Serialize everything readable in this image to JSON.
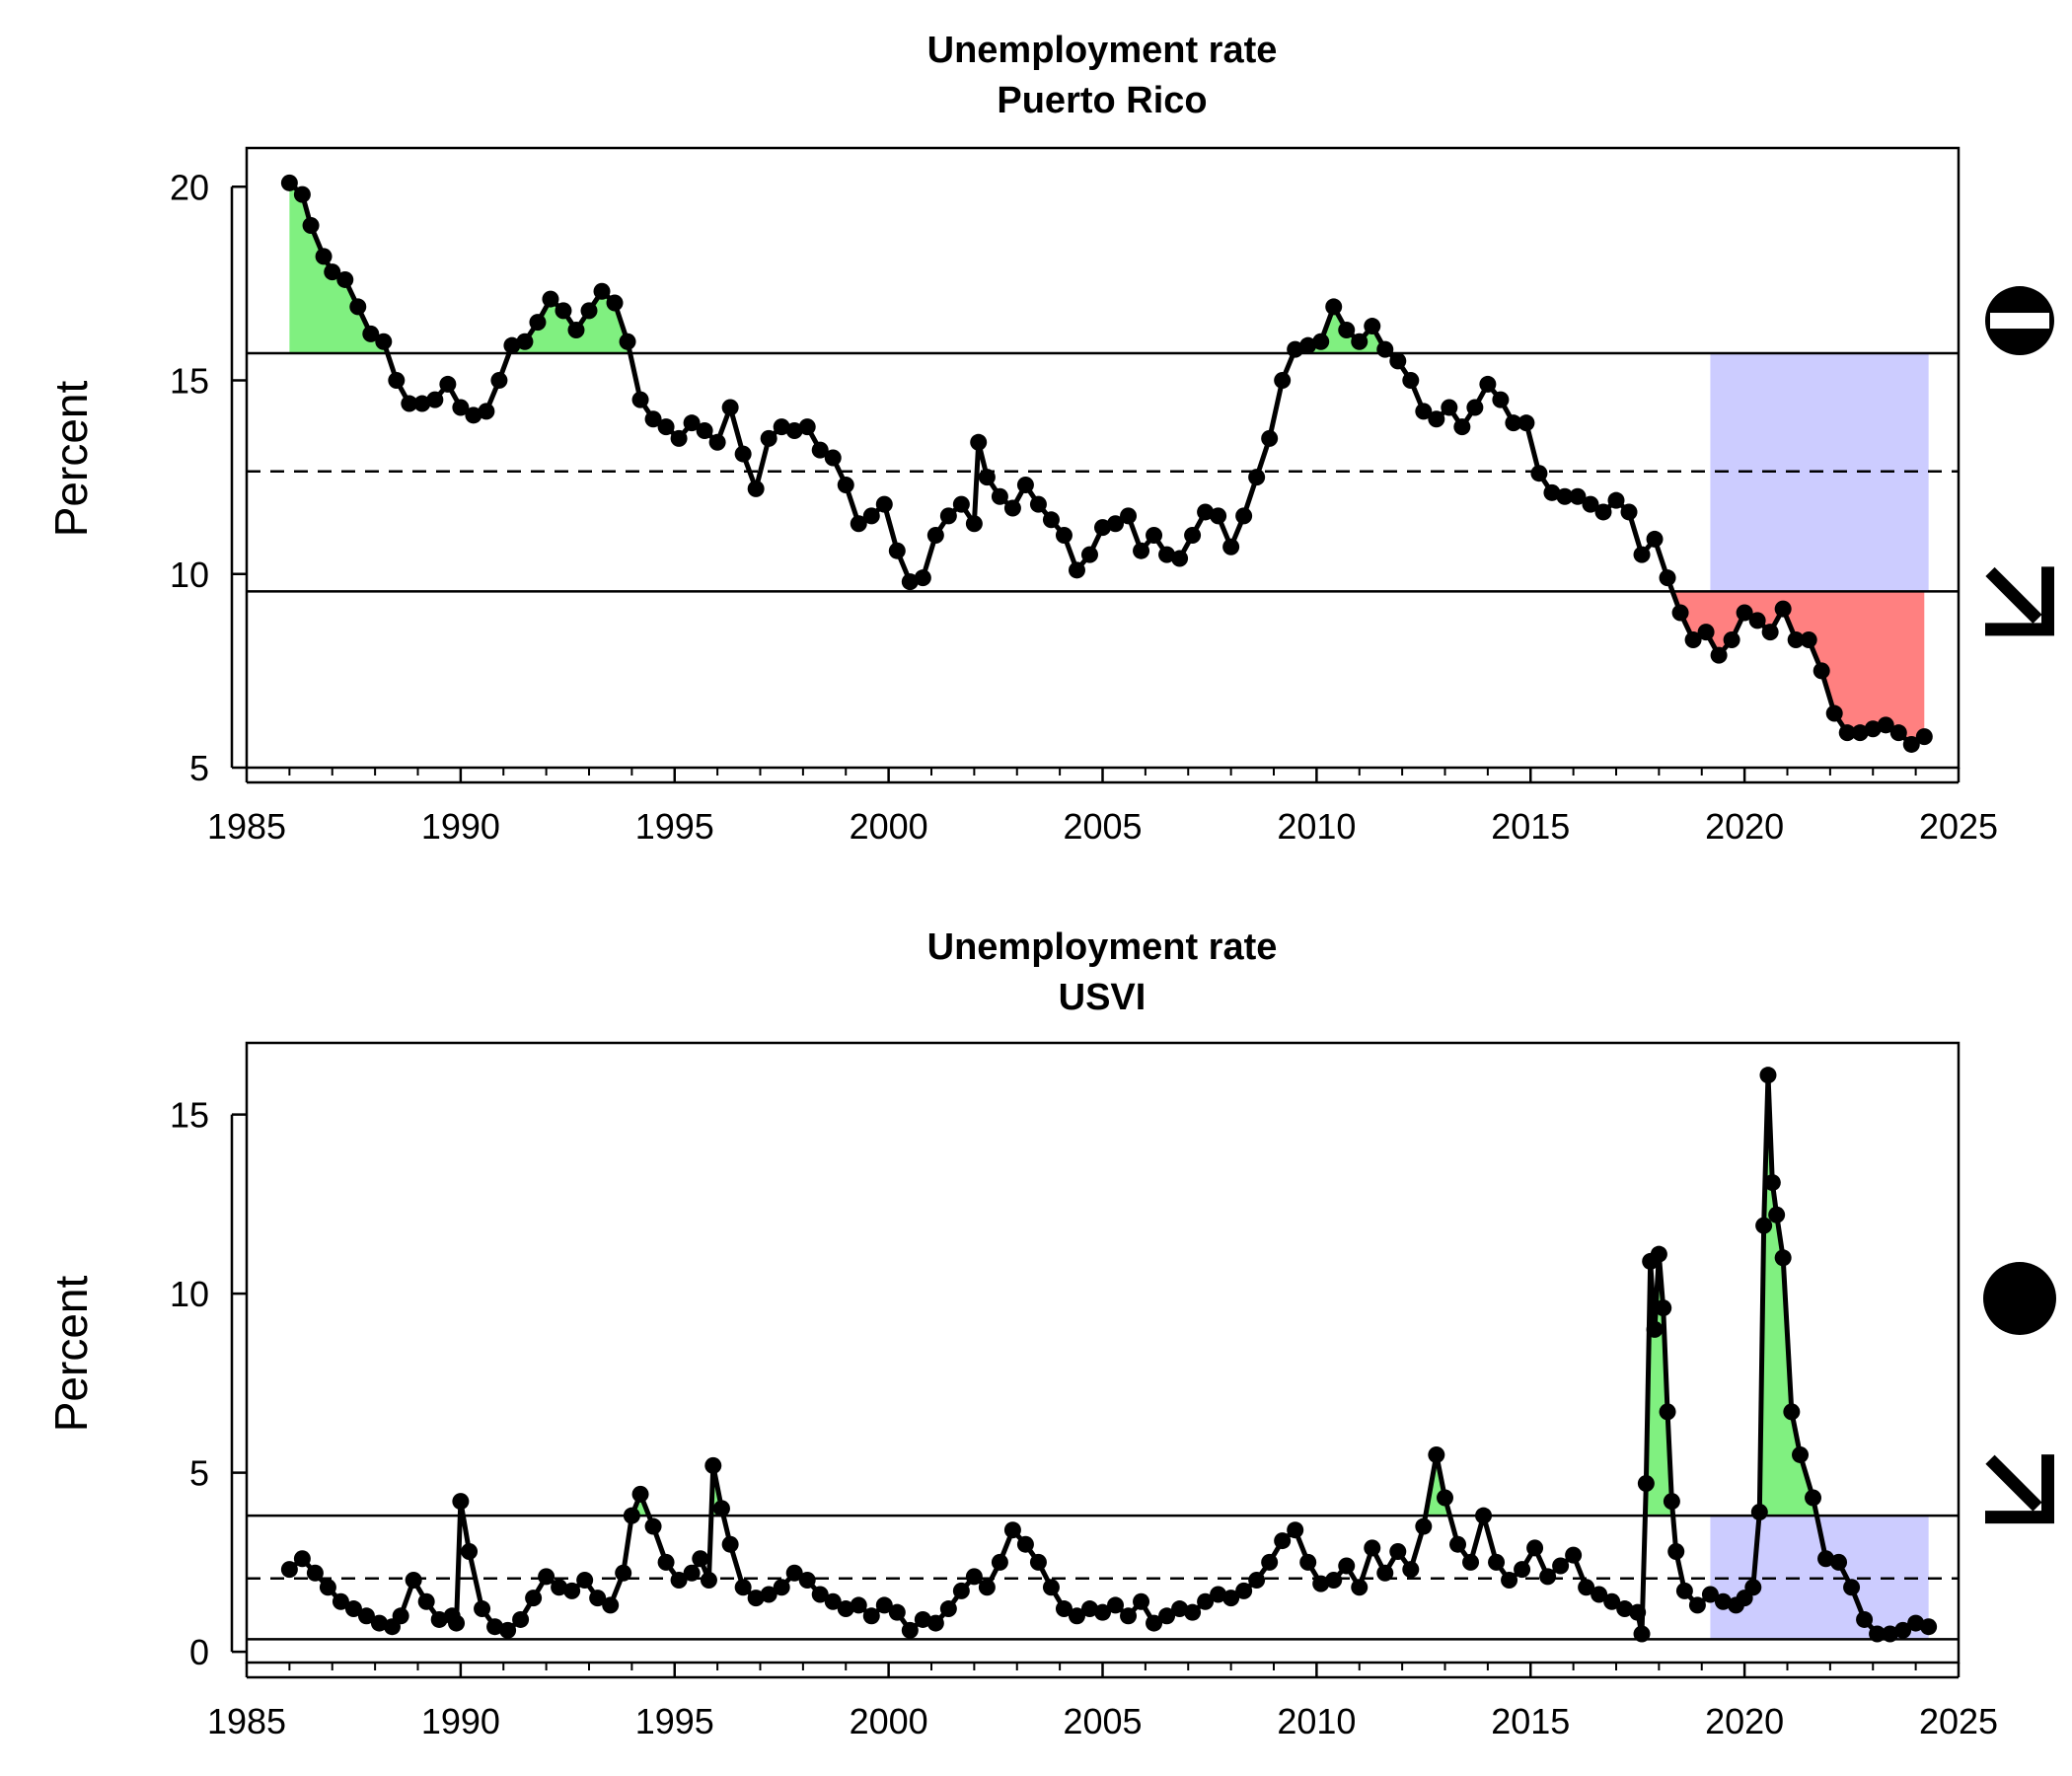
{
  "colors": {
    "above": "#80f080",
    "below": "#ff8080",
    "recent": "#ccccff",
    "line": "#000000"
  },
  "chart_data": [
    {
      "type": "line",
      "title": "Unemployment rate",
      "subtitle": "Puerto Rico",
      "ylabel": "Percent",
      "xlim": [
        1985,
        2025
      ],
      "ylim": [
        5,
        21
      ],
      "xticks": [
        1985,
        1990,
        1995,
        2000,
        2005,
        2010,
        2015,
        2020,
        2025
      ],
      "yticks": [
        5,
        10,
        15,
        20
      ],
      "upper": 15.7,
      "mean": 12.65,
      "lower": 9.55,
      "recent_window": [
        2019.2,
        2024.3
      ],
      "status_icon": "half-filled-circle-icon",
      "trend_icon": "down-right-arrow-icon",
      "series": [
        {
          "x": [
            1986.0,
            1986.3,
            1986.5,
            1986.8,
            1987.0,
            1987.3,
            1987.6,
            1987.9,
            1988.2,
            1988.5,
            1988.8,
            1989.1,
            1989.4,
            1989.7,
            1990.0,
            1990.3,
            1990.6,
            1990.9,
            1991.2,
            1991.5,
            1991.8,
            1992.1,
            1992.4,
            1992.7,
            1993.0,
            1993.3,
            1993.6,
            1993.9,
            1994.2,
            1994.5,
            1994.8,
            1995.1,
            1995.4,
            1995.7,
            1996.0,
            1996.3,
            1996.6,
            1996.9,
            1997.2,
            1997.5,
            1997.8,
            1998.1,
            1998.4,
            1998.7,
            1999.0,
            1999.3,
            1999.6,
            1999.9,
            2000.2,
            2000.5,
            2000.8,
            2001.1,
            2001.4,
            2001.7,
            2002.0,
            2002.1,
            2002.3,
            2002.6,
            2002.9,
            2003.2,
            2003.5,
            2003.8,
            2004.1,
            2004.4,
            2004.7,
            2005.0,
            2005.3,
            2005.6,
            2005.9,
            2006.2,
            2006.5,
            2006.8,
            2007.1,
            2007.4,
            2007.7,
            2008.0,
            2008.3,
            2008.6,
            2008.9,
            2009.2,
            2009.5,
            2009.8,
            2010.1,
            2010.4,
            2010.7,
            2011.0,
            2011.3,
            2011.6,
            2011.9,
            2012.2,
            2012.5,
            2012.8,
            2013.1,
            2013.4,
            2013.7,
            2014.0,
            2014.3,
            2014.6,
            2014.9,
            2015.2,
            2015.5,
            2015.8,
            2016.1,
            2016.4,
            2016.7,
            2017.0,
            2017.3,
            2017.6,
            2017.9,
            2018.2,
            2018.5,
            2018.8,
            2019.1,
            2019.4,
            2019.7,
            2020.0,
            2020.3,
            2020.6,
            2020.9,
            2021.2,
            2021.5,
            2021.8,
            2022.1,
            2022.4,
            2022.7,
            2023.0,
            2023.3,
            2023.6,
            2023.9,
            2024.2
          ],
          "y": [
            20.1,
            19.8,
            19.0,
            18.2,
            17.8,
            17.6,
            16.9,
            16.2,
            16.0,
            15.0,
            14.4,
            14.4,
            14.5,
            14.9,
            14.3,
            14.1,
            14.2,
            15.0,
            15.9,
            16.0,
            16.5,
            17.1,
            16.8,
            16.3,
            16.8,
            17.3,
            17.0,
            16.0,
            14.5,
            14.0,
            13.8,
            13.5,
            13.9,
            13.7,
            13.4,
            14.3,
            13.1,
            12.2,
            13.5,
            13.8,
            13.7,
            13.8,
            13.2,
            13.0,
            12.3,
            11.3,
            11.5,
            11.8,
            10.6,
            9.8,
            9.9,
            11.0,
            11.5,
            11.8,
            11.3,
            13.4,
            12.5,
            12.0,
            11.7,
            12.3,
            11.8,
            11.4,
            11.0,
            10.1,
            10.5,
            11.2,
            11.3,
            11.5,
            10.6,
            11.0,
            10.5,
            10.4,
            11.0,
            11.6,
            11.5,
            10.7,
            11.5,
            12.5,
            13.5,
            15.0,
            15.8,
            15.9,
            16.0,
            16.9,
            16.3,
            16.0,
            16.4,
            15.8,
            15.5,
            15.0,
            14.2,
            14.0,
            14.3,
            13.8,
            14.3,
            14.9,
            14.5,
            13.9,
            13.9,
            12.6,
            12.1,
            12.0,
            12.0,
            11.8,
            11.6,
            11.9,
            11.6,
            10.5,
            10.9,
            9.9,
            9.0,
            8.3,
            8.5,
            7.9,
            8.3,
            9.0,
            8.8,
            8.5,
            9.1,
            8.3,
            8.3,
            7.5,
            6.4,
            5.9,
            5.9,
            6.0,
            6.1,
            5.9,
            5.6,
            5.8
          ]
        }
      ]
    },
    {
      "type": "line",
      "title": "Unemployment rate",
      "subtitle": "USVI",
      "ylabel": "Percent",
      "xlim": [
        1985,
        2025
      ],
      "ylim": [
        -0.3,
        17
      ],
      "xticks": [
        1985,
        1990,
        1995,
        2000,
        2005,
        2010,
        2015,
        2020,
        2025
      ],
      "yticks": [
        0,
        5,
        10,
        15
      ],
      "upper": 3.8,
      "mean": 2.05,
      "lower": 0.35,
      "recent_window": [
        2019.2,
        2024.3
      ],
      "status_icon": "filled-circle-icon",
      "trend_icon": "down-right-arrow-icon",
      "series": [
        {
          "x": [
            1986.0,
            1986.3,
            1986.6,
            1986.9,
            1987.2,
            1987.5,
            1987.8,
            1988.1,
            1988.4,
            1988.6,
            1988.9,
            1989.2,
            1989.5,
            1989.8,
            1989.9,
            1990.0,
            1990.2,
            1990.5,
            1990.8,
            1991.1,
            1991.4,
            1991.7,
            1992.0,
            1992.3,
            1992.6,
            1992.9,
            1993.2,
            1993.5,
            1993.8,
            1994.0,
            1994.2,
            1994.5,
            1994.8,
            1995.1,
            1995.4,
            1995.6,
            1995.8,
            1995.9,
            1996.1,
            1996.3,
            1996.6,
            1996.9,
            1997.2,
            1997.5,
            1997.8,
            1998.1,
            1998.4,
            1998.7,
            1999.0,
            1999.3,
            1999.6,
            1999.9,
            2000.2,
            2000.5,
            2000.8,
            2001.1,
            2001.4,
            2001.7,
            2002.0,
            2002.3,
            2002.6,
            2002.9,
            2003.2,
            2003.5,
            2003.8,
            2004.1,
            2004.4,
            2004.7,
            2005.0,
            2005.3,
            2005.6,
            2005.9,
            2006.2,
            2006.5,
            2006.8,
            2007.1,
            2007.4,
            2007.7,
            2008.0,
            2008.3,
            2008.6,
            2008.9,
            2009.2,
            2009.5,
            2009.8,
            2010.1,
            2010.4,
            2010.7,
            2011.0,
            2011.3,
            2011.6,
            2011.9,
            2012.2,
            2012.5,
            2012.8,
            2013.0,
            2013.3,
            2013.6,
            2013.9,
            2014.2,
            2014.5,
            2014.8,
            2015.1,
            2015.4,
            2015.7,
            2016.0,
            2016.3,
            2016.6,
            2016.9,
            2017.2,
            2017.5,
            2017.6,
            2017.7,
            2017.8,
            2017.9,
            2018.0,
            2018.1,
            2018.2,
            2018.3,
            2018.4,
            2018.6,
            2018.9,
            2019.2,
            2019.5,
            2019.8,
            2020.0,
            2020.2,
            2020.35,
            2020.45,
            2020.55,
            2020.65,
            2020.75,
            2020.9,
            2021.1,
            2021.3,
            2021.6,
            2021.9,
            2022.2,
            2022.5,
            2022.8,
            2023.1,
            2023.4,
            2023.7,
            2024.0,
            2024.3
          ],
          "y": [
            2.3,
            2.6,
            2.2,
            1.8,
            1.4,
            1.2,
            1.0,
            0.8,
            0.7,
            1.0,
            2.0,
            1.4,
            0.9,
            1.0,
            0.8,
            4.2,
            2.8,
            1.2,
            0.7,
            0.6,
            0.9,
            1.5,
            2.1,
            1.8,
            1.7,
            2.0,
            1.5,
            1.3,
            2.2,
            3.8,
            4.4,
            3.5,
            2.5,
            2.0,
            2.2,
            2.6,
            2.0,
            5.2,
            4.0,
            3.0,
            1.8,
            1.5,
            1.6,
            1.8,
            2.2,
            2.0,
            1.6,
            1.4,
            1.2,
            1.3,
            1.0,
            1.3,
            1.1,
            0.6,
            0.9,
            0.8,
            1.2,
            1.7,
            2.1,
            1.8,
            2.5,
            3.4,
            3.0,
            2.5,
            1.8,
            1.2,
            1.0,
            1.2,
            1.1,
            1.3,
            1.0,
            1.4,
            0.8,
            1.0,
            1.2,
            1.1,
            1.4,
            1.6,
            1.5,
            1.7,
            2.0,
            2.5,
            3.1,
            3.4,
            2.5,
            1.9,
            2.0,
            2.4,
            1.8,
            2.9,
            2.2,
            2.8,
            2.3,
            3.5,
            5.5,
            4.3,
            3.0,
            2.5,
            3.8,
            2.5,
            2.0,
            2.3,
            2.9,
            2.1,
            2.4,
            2.7,
            1.8,
            1.6,
            1.4,
            1.2,
            1.1,
            0.5,
            4.7,
            10.9,
            9.0,
            11.1,
            9.6,
            6.7,
            4.2,
            2.8,
            1.7,
            1.3,
            1.6,
            1.4,
            1.3,
            1.5,
            1.8,
            3.9,
            11.9,
            16.1,
            13.1,
            12.2,
            11.0,
            6.7,
            5.5,
            4.3,
            2.6,
            2.5,
            1.8,
            0.9,
            0.5,
            0.5,
            0.6,
            0.8,
            0.7
          ]
        }
      ]
    }
  ]
}
